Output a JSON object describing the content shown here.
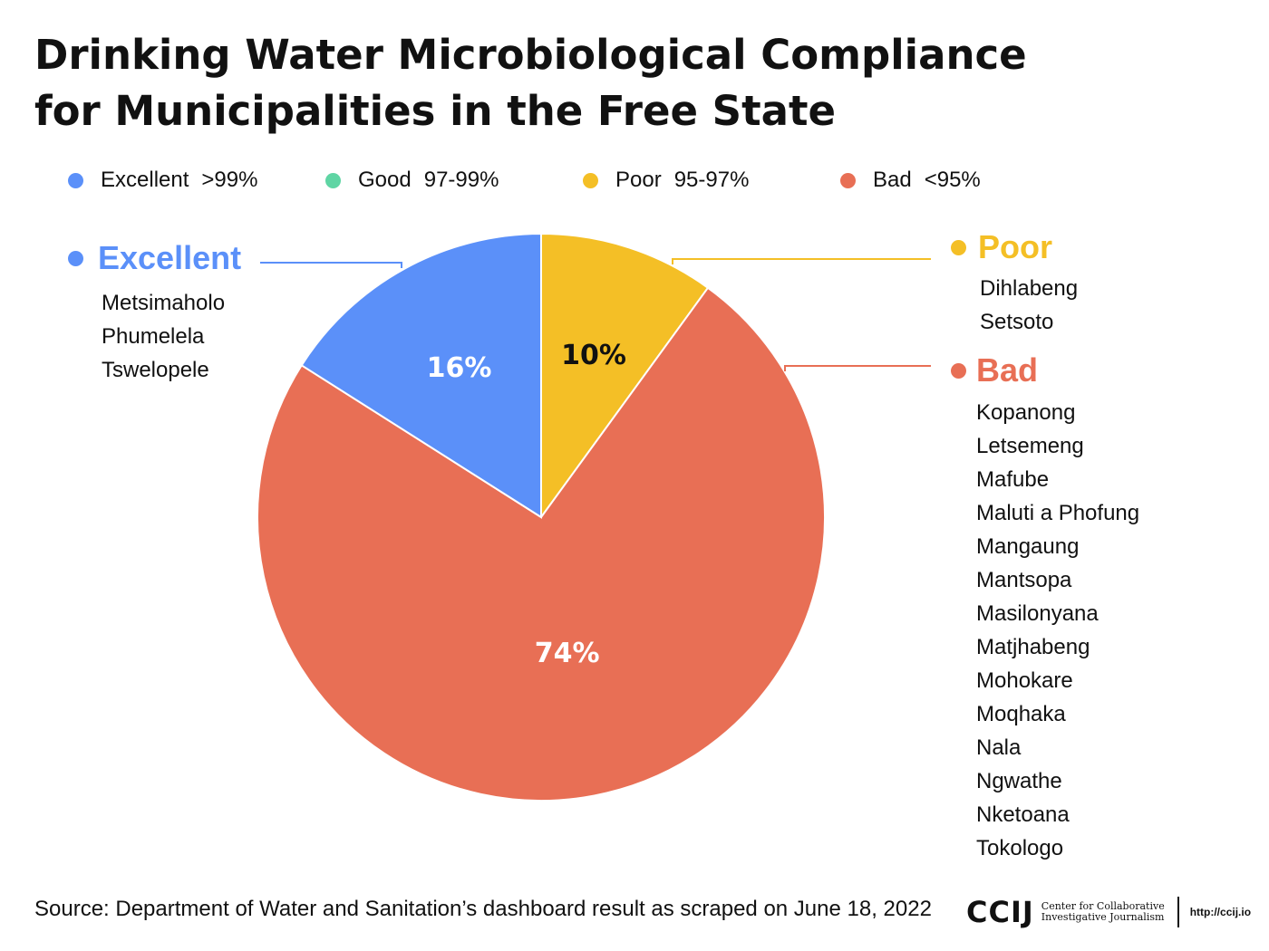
{
  "title": "Drinking Water Microbiological Compliance for Municipalities in the Free State",
  "legend": [
    {
      "name": "Excellent",
      "range": ">99%",
      "color": "#5b90f9"
    },
    {
      "name": "Good",
      "range": "97-99%",
      "color": "#5fd5a4"
    },
    {
      "name": "Poor",
      "range": "95-97%",
      "color": "#f4bf26"
    },
    {
      "name": "Bad",
      "range": "<95%",
      "color": "#e86f55"
    }
  ],
  "chart_data": {
    "type": "pie",
    "slices": [
      {
        "label": "Excellent",
        "value": 16,
        "value_label": "16%",
        "color": "#5b90f9",
        "label_color": "#ffffff"
      },
      {
        "label": "Poor",
        "value": 10,
        "value_label": "10%",
        "color": "#f4bf26",
        "label_color": "#111111"
      },
      {
        "label": "Bad",
        "value": 74,
        "value_label": "74%",
        "color": "#e86f55",
        "label_color": "#ffffff"
      }
    ]
  },
  "categories": {
    "excellent": {
      "label": "Excellent",
      "color": "#5b90f9",
      "municipalities": [
        "Metsimaholo",
        "Phumelela",
        "Tswelopele"
      ]
    },
    "poor": {
      "label": "Poor",
      "color": "#f4bf26",
      "municipalities": [
        "Dihlabeng",
        "Setsoto"
      ]
    },
    "bad": {
      "label": "Bad",
      "color": "#e86f55",
      "municipalities": [
        "Kopanong",
        "Letsemeng",
        "Mafube",
        "Maluti a Phofung",
        "Mangaung",
        "Mantsopa",
        "Masilonyana",
        "Matjhabeng",
        "Mohokare",
        "Moqhaka",
        "Nala",
        "Ngwathe",
        "Nketoana",
        "Tokologo"
      ]
    }
  },
  "source": "Source: Department of Water and Sanitation’s dashboard result as scraped on June 18, 2022",
  "logo": {
    "mark": "CCIJ",
    "line1": "Center for Collaborative",
    "line2": "Investigative Journalism",
    "url": "http://ccij.io"
  }
}
